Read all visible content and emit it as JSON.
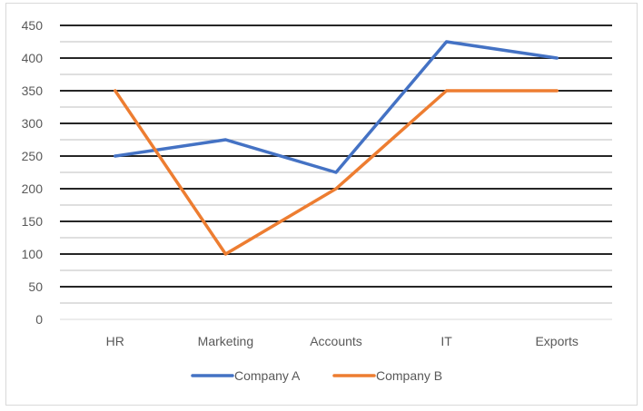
{
  "chart_data": {
    "type": "line",
    "title": "",
    "xlabel": "",
    "ylabel": "",
    "categories": [
      "HR",
      "Marketing",
      "Accounts",
      "IT",
      "Exports"
    ],
    "ylim": [
      0,
      450
    ],
    "yticks": [
      0,
      50,
      100,
      150,
      200,
      250,
      300,
      350,
      400,
      450
    ],
    "grid": true,
    "legend": "bottom",
    "series": [
      {
        "name": "Company A",
        "color": "#4472c4",
        "values": [
          250,
          275,
          225,
          425,
          400
        ]
      },
      {
        "name": "Company B",
        "color": "#ed7d31",
        "values": [
          350,
          100,
          200,
          350,
          350
        ]
      }
    ]
  }
}
